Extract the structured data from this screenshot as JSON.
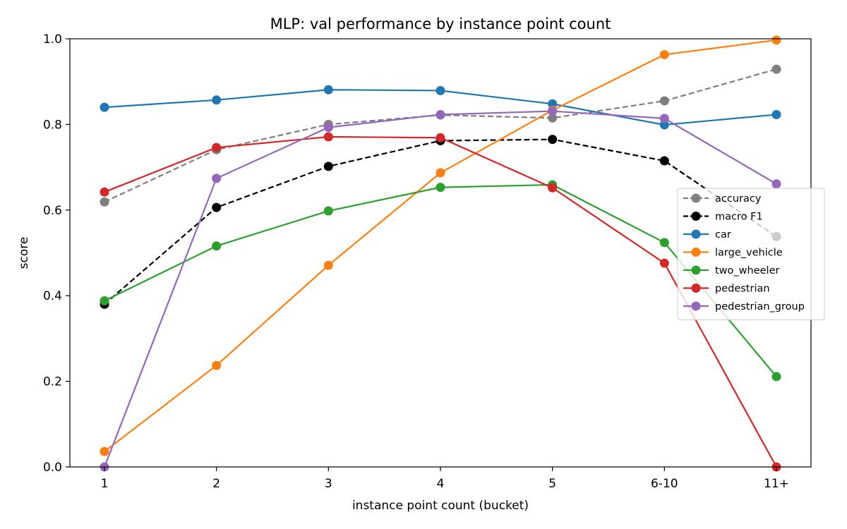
{
  "chart_data": {
    "type": "line",
    "title": "MLP: val performance by instance point count",
    "xlabel": "instance point count (bucket)",
    "ylabel": "score",
    "categories": [
      "1",
      "2",
      "3",
      "4",
      "5",
      "6-10",
      "11+"
    ],
    "ylim": [
      0.0,
      1.0
    ],
    "yticks": [
      "0.0",
      "0.2",
      "0.4",
      "0.6",
      "0.8",
      "1.0"
    ],
    "grid": false,
    "legend_position": "center-right",
    "series": [
      {
        "name": "accuracy",
        "color": "#7f7f7f",
        "dashed": true,
        "values": [
          0.619,
          0.741,
          0.8,
          0.822,
          0.815,
          0.855,
          0.929
        ]
      },
      {
        "name": "macro F1",
        "color": "#000000",
        "dashed": true,
        "values": [
          0.38,
          0.606,
          0.702,
          0.762,
          0.765,
          0.715,
          0.538
        ]
      },
      {
        "name": "car",
        "color": "#1f77b4",
        "dashed": false,
        "values": [
          0.84,
          0.857,
          0.881,
          0.879,
          0.848,
          0.799,
          0.823
        ]
      },
      {
        "name": "large_vehicle",
        "color": "#ff7f0e",
        "dashed": false,
        "values": [
          0.036,
          0.237,
          0.471,
          0.687,
          0.833,
          0.963,
          0.997
        ]
      },
      {
        "name": "two_wheeler",
        "color": "#2ca02c",
        "dashed": false,
        "values": [
          0.388,
          0.516,
          0.598,
          0.653,
          0.659,
          0.524,
          0.211
        ]
      },
      {
        "name": "pedestrian",
        "color": "#d62728",
        "dashed": false,
        "values": [
          0.642,
          0.746,
          0.771,
          0.769,
          0.652,
          0.476,
          0.0
        ]
      },
      {
        "name": "pedestrian_group",
        "color": "#9467bd",
        "dashed": false,
        "values": [
          0.0,
          0.674,
          0.793,
          0.823,
          0.831,
          0.814,
          0.661
        ]
      }
    ]
  }
}
